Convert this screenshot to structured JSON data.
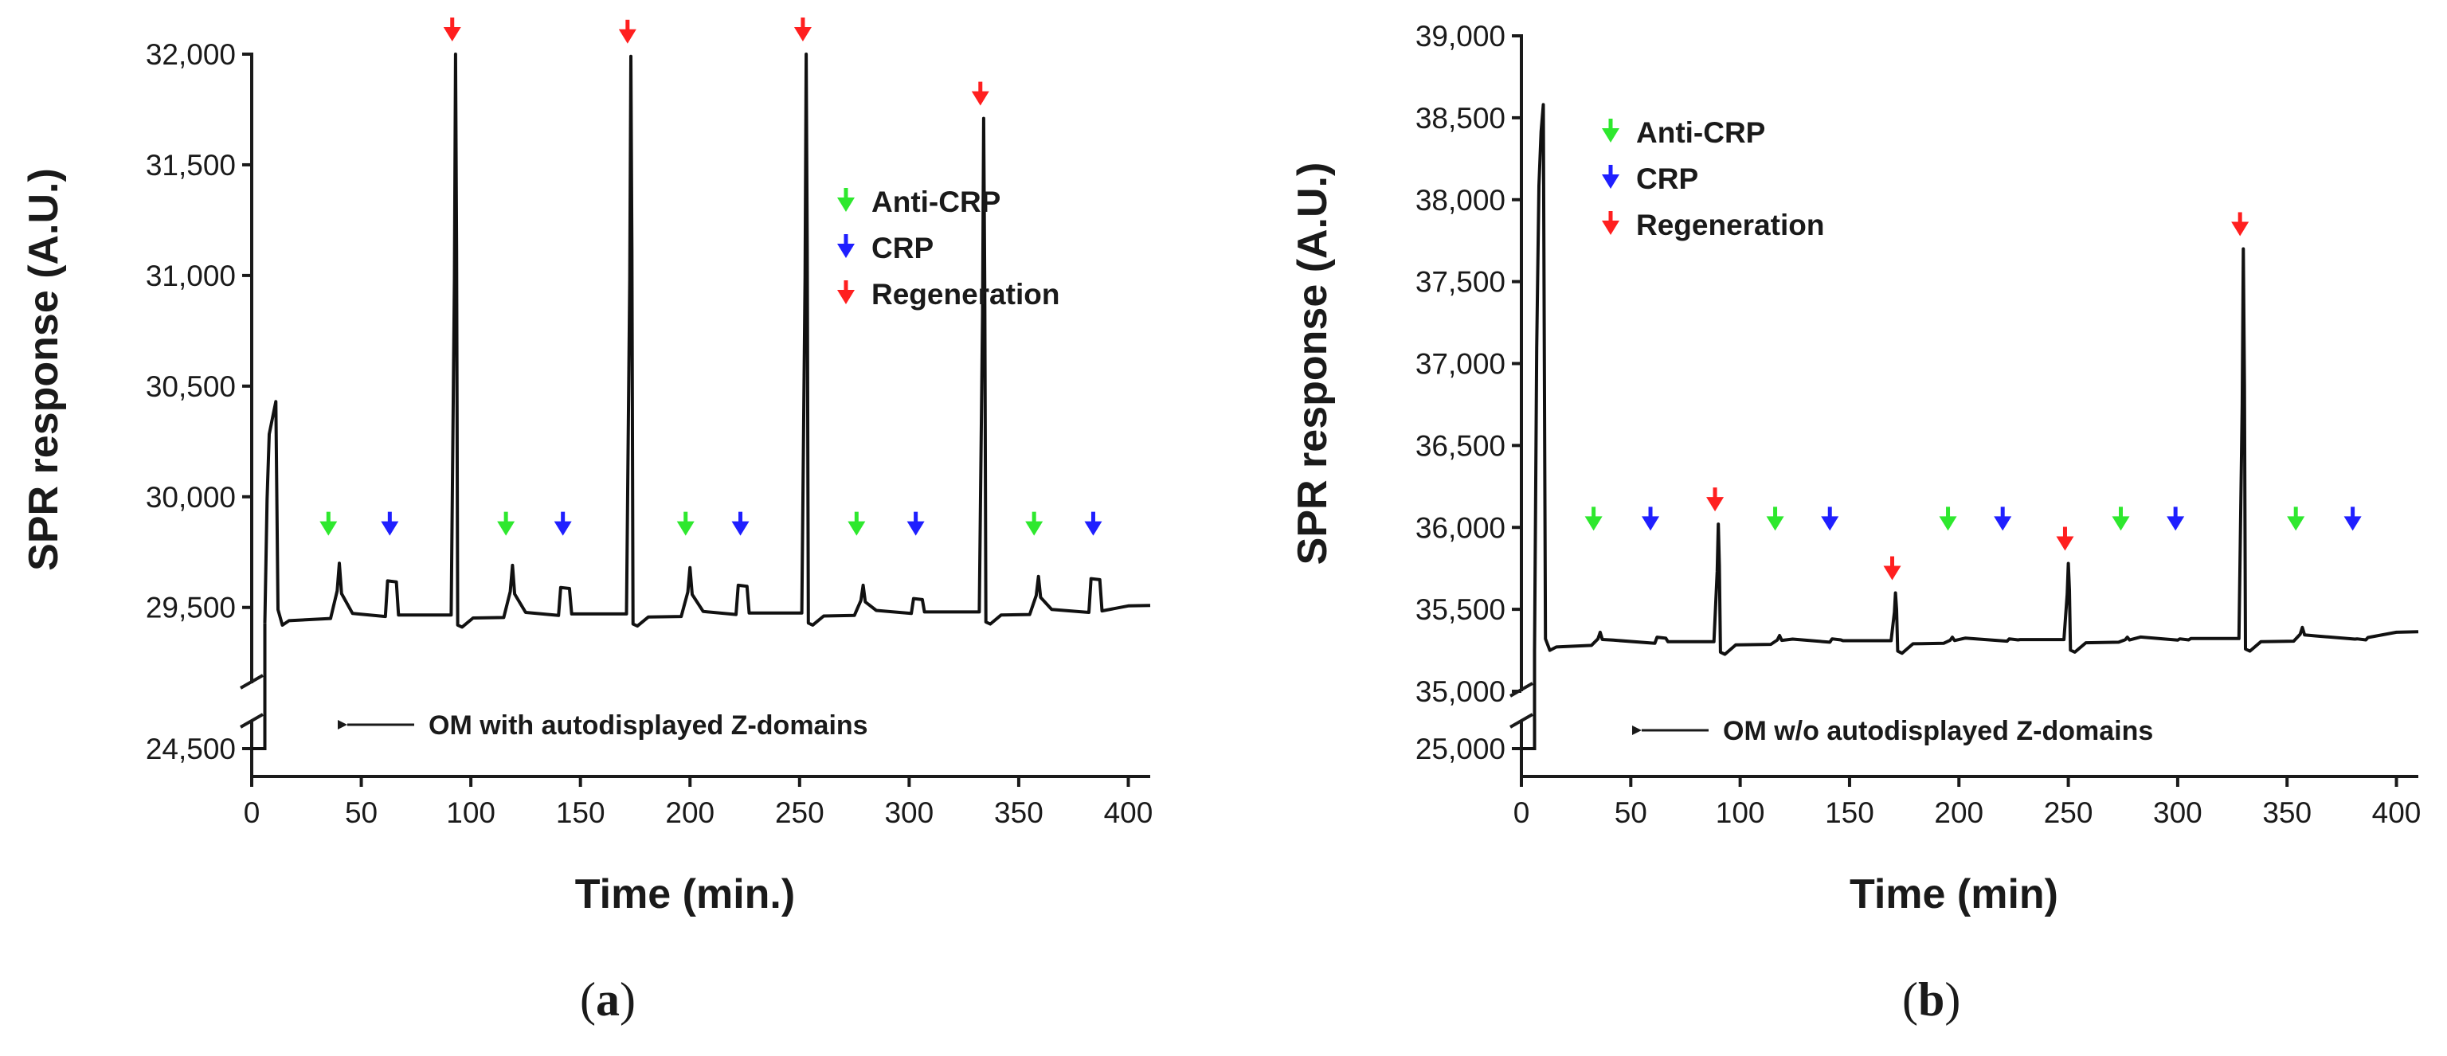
{
  "chart_data": [
    {
      "type": "line",
      "panel_label_open": "(",
      "panel_label_letter": "a",
      "panel_label_close": ")",
      "xlabel": "Time (min.)",
      "ylabel": "SPR response (A.U.)",
      "xlim": [
        0,
        410
      ],
      "xticks": [
        0,
        50,
        100,
        150,
        200,
        250,
        300,
        350,
        400
      ],
      "x_tick_labels": [
        "0",
        "50",
        "100",
        "150",
        "200",
        "250",
        "300",
        "350",
        "400"
      ],
      "ylim_upper": [
        29150,
        32000
      ],
      "ylim_lower": [
        24400,
        24600
      ],
      "yticks": [
        29500,
        30000,
        30500,
        31000,
        31500,
        32000
      ],
      "y_tick_labels": [
        "29,500",
        "30,000",
        "30,500",
        "31,000",
        "31,500",
        "32,000"
      ],
      "y_break_tick": 24500,
      "y_break_tick_label": "24,500",
      "baseline_start": 24500,
      "baseline": 29450,
      "legend_position": "top-right",
      "legend": [
        {
          "label": "Anti-CRP",
          "color": "#2ee82e"
        },
        {
          "label": "CRP",
          "color": "#1f1fff"
        },
        {
          "label": "Regeneration",
          "color": "#ff1f1f"
        }
      ],
      "annotation": "OM with autodisplayed Z-domains",
      "initial_spike": {
        "x": 11,
        "y": 30430
      },
      "regeneration_spikes": [
        {
          "x": 93,
          "y": 32000
        },
        {
          "x": 173,
          "y": 31990
        },
        {
          "x": 253,
          "y": 32000
        },
        {
          "x": 334,
          "y": 31710
        }
      ],
      "anti_crp_markers": [
        35,
        116,
        198,
        276,
        357
      ],
      "crp_markers": [
        63,
        142,
        223,
        303,
        384
      ],
      "anti_crp_bumps": [
        {
          "x": 40,
          "y": 29700
        },
        {
          "x": 119,
          "y": 29690
        },
        {
          "x": 200,
          "y": 29680
        },
        {
          "x": 279,
          "y": 29600
        },
        {
          "x": 359,
          "y": 29640
        }
      ],
      "crp_steps": [
        {
          "x": 63,
          "y": 29620
        },
        {
          "x": 142,
          "y": 29590
        },
        {
          "x": 223,
          "y": 29600
        },
        {
          "x": 303,
          "y": 29540
        },
        {
          "x": 384,
          "y": 29630
        }
      ]
    },
    {
      "type": "line",
      "panel_label_open": "(",
      "panel_label_letter": "b",
      "panel_label_close": ")",
      "xlabel": "Time (min)",
      "ylabel": "SPR response (A.U.)",
      "xlim": [
        0,
        410
      ],
      "xticks": [
        0,
        50,
        100,
        150,
        200,
        250,
        300,
        350,
        400
      ],
      "x_tick_labels": [
        "0",
        "50",
        "100",
        "150",
        "200",
        "250",
        "300",
        "350",
        "400"
      ],
      "ylim_upper": [
        35000,
        39000
      ],
      "ylim_lower": [
        24900,
        25100
      ],
      "yticks": [
        35000,
        35500,
        36000,
        36500,
        37000,
        37500,
        38000,
        38500,
        39000
      ],
      "y_tick_labels": [
        "35,000",
        "35,500",
        "36,000",
        "36,500",
        "37,000",
        "37,500",
        "38,000",
        "38,500",
        "39,000"
      ],
      "y_break_tick": 25000,
      "y_break_tick_label": "25,000",
      "baseline_start": 25000,
      "baseline": 35280,
      "legend_position": "top-left",
      "legend": [
        {
          "label": "Anti-CRP",
          "color": "#2ee82e"
        },
        {
          "label": "CRP",
          "color": "#1f1fff"
        },
        {
          "label": "Regeneration",
          "color": "#ff1f1f"
        }
      ],
      "annotation": "OM w/o autodisplayed Z-domains",
      "initial_spike": {
        "x": 10,
        "y": 38580
      },
      "regeneration_spikes": [
        {
          "x": 90,
          "y": 36020
        },
        {
          "x": 171,
          "y": 35600
        },
        {
          "x": 250,
          "y": 35780
        },
        {
          "x": 330,
          "y": 37700
        }
      ],
      "anti_crp_markers": [
        33,
        116,
        195,
        274,
        354
      ],
      "crp_markers": [
        59,
        141,
        220,
        299,
        380
      ],
      "anti_crp_bumps": [
        {
          "x": 36,
          "y": 35360
        },
        {
          "x": 118,
          "y": 35340
        },
        {
          "x": 197,
          "y": 35330
        },
        {
          "x": 277,
          "y": 35330
        },
        {
          "x": 357,
          "y": 35390
        }
      ],
      "crp_steps": [
        {
          "x": 63,
          "y": 35330
        },
        {
          "x": 143,
          "y": 35320
        },
        {
          "x": 224,
          "y": 35320
        },
        {
          "x": 302,
          "y": 35320
        },
        {
          "x": 383,
          "y": 35320
        }
      ]
    }
  ]
}
